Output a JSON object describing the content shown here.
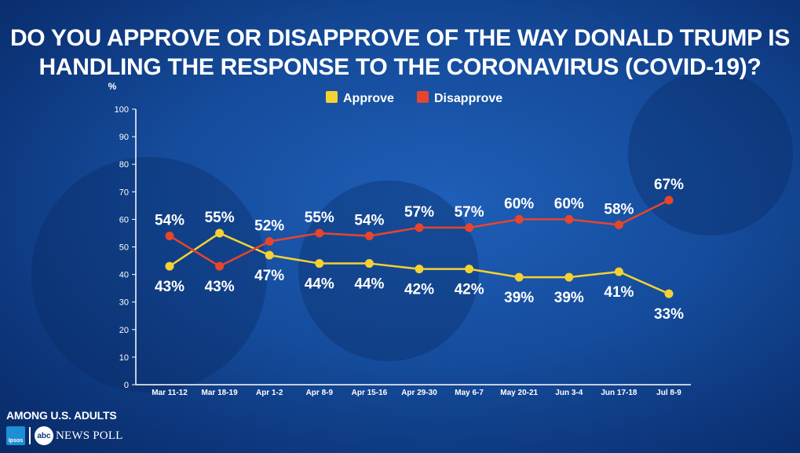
{
  "title_lines": [
    "DO YOU APPROVE OR DISAPPROVE OF THE WAY DONALD TRUMP IS",
    "HANDLING THE RESPONSE TO THE CORONAVIRUS (COVID-19)?"
  ],
  "footer": {
    "population": "AMONG U.S. ADULTS",
    "ipsos_logo": "Ipsos",
    "abc_logo": "abc",
    "poll": "NEWS POLL"
  },
  "colors": {
    "approve": "#f4d233",
    "disapprove": "#e8452c",
    "axis": "#ffffff"
  },
  "chart_data": {
    "type": "line",
    "ylabel": "%",
    "ylim": [
      0,
      100
    ],
    "yticks": [
      0,
      10,
      20,
      30,
      40,
      50,
      60,
      70,
      80,
      90,
      100
    ],
    "categories": [
      "Mar 11-12",
      "Mar 18-19",
      "Apr 1-2",
      "Apr 8-9",
      "Apr 15-16",
      "Apr 29-30",
      "May 6-7",
      "May 20-21",
      "Jun 3-4",
      "Jun 17-18",
      "Jul 8-9"
    ],
    "legend_position": "top-center",
    "grid": false,
    "series": [
      {
        "name": "Approve",
        "values": [
          43,
          55,
          47,
          44,
          44,
          42,
          42,
          39,
          39,
          41,
          33
        ],
        "labels": [
          "43%",
          "55%",
          "47%",
          "44%",
          "44%",
          "42%",
          "42%",
          "39%",
          "39%",
          "41%",
          "33%"
        ]
      },
      {
        "name": "Disapprove",
        "values": [
          54,
          43,
          52,
          55,
          54,
          57,
          57,
          60,
          60,
          58,
          67
        ],
        "labels": [
          "54%",
          "43%",
          "52%",
          "55%",
          "54%",
          "57%",
          "57%",
          "60%",
          "60%",
          "58%",
          "67%"
        ]
      }
    ]
  }
}
